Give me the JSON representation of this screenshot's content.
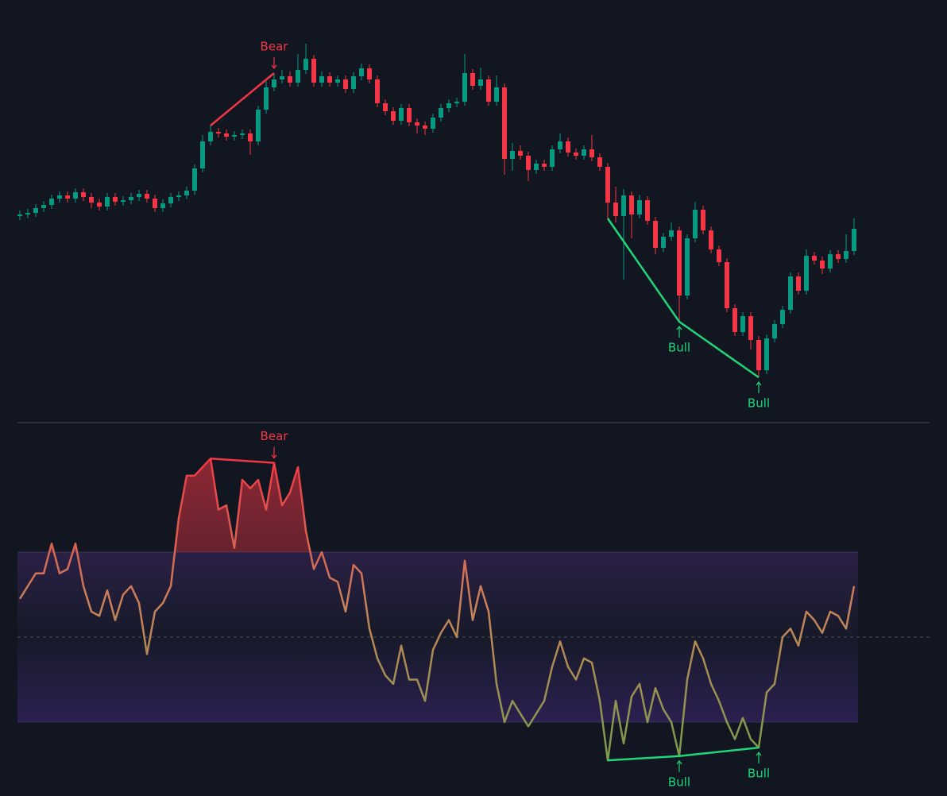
{
  "chart_data": [
    {
      "type": "candlestick",
      "ylim": [
        0,
        480
      ],
      "up_color": "#089981",
      "down_color": "#f23645",
      "open": [
        248,
        250,
        252,
        258,
        262,
        270,
        274,
        270,
        278,
        272,
        265,
        260,
        272,
        266,
        268,
        272,
        276,
        270,
        258,
        264,
        272,
        274,
        280,
        308,
        342,
        354,
        352,
        348,
        350,
        352,
        342,
        382,
        410,
        420,
        424,
        416,
        432,
        446,
        416,
        424,
        416,
        420,
        408,
        424,
        434,
        420,
        390,
        380,
        368,
        384,
        366,
        362,
        358,
        372,
        384,
        390,
        392,
        428,
        412,
        420,
        392,
        410,
        320,
        330,
        324,
        306,
        314,
        310,
        332,
        342,
        328,
        324,
        332,
        322,
        310,
        265,
        248,
        274,
        250,
        268,
        242,
        208,
        222,
        230,
        148,
        220,
        256,
        230,
        206,
        190,
        132,
        102,
        122,
        92,
        54,
        94,
        112,
        130,
        172,
        154,
        198,
        192,
        182,
        200,
        194,
        204
      ],
      "high": [
        255,
        257,
        263,
        267,
        275,
        279,
        279,
        283,
        283,
        277,
        270,
        277,
        277,
        273,
        277,
        281,
        281,
        275,
        269,
        277,
        279,
        285,
        313,
        350,
        362,
        359,
        357,
        355,
        357,
        357,
        387,
        418,
        428,
        432,
        430,
        452,
        465,
        451,
        430,
        429,
        425,
        425,
        429,
        440,
        439,
        425,
        395,
        385,
        389,
        389,
        371,
        367,
        377,
        389,
        395,
        397,
        452,
        433,
        435,
        425,
        425,
        415,
        340,
        337,
        329,
        319,
        319,
        337,
        352,
        347,
        333,
        337,
        350,
        327,
        315,
        285,
        282,
        279,
        275,
        273,
        247,
        227,
        240,
        235,
        225,
        266,
        261,
        235,
        211,
        195,
        137,
        127,
        127,
        97,
        99,
        117,
        135,
        177,
        177,
        206,
        203,
        197,
        205,
        205,
        225,
        245
      ],
      "low": [
        243,
        245,
        247,
        253,
        257,
        265,
        265,
        265,
        267,
        258,
        255,
        255,
        261,
        261,
        263,
        267,
        265,
        253,
        253,
        259,
        267,
        269,
        275,
        303,
        337,
        347,
        343,
        343,
        345,
        325,
        337,
        377,
        405,
        415,
        411,
        411,
        427,
        411,
        411,
        411,
        411,
        403,
        403,
        419,
        415,
        385,
        375,
        363,
        363,
        361,
        352,
        350,
        353,
        367,
        379,
        385,
        387,
        407,
        407,
        387,
        387,
        300,
        305,
        319,
        292,
        301,
        305,
        305,
        327,
        323,
        319,
        319,
        317,
        305,
        245,
        240,
        168,
        220,
        245,
        237,
        200,
        203,
        217,
        115,
        143,
        215,
        225,
        201,
        185,
        127,
        97,
        97,
        80,
        45,
        49,
        89,
        107,
        125,
        149,
        149,
        187,
        175,
        177,
        189,
        189,
        199
      ],
      "close": [
        250,
        252,
        258,
        262,
        270,
        274,
        270,
        278,
        272,
        265,
        260,
        272,
        266,
        268,
        272,
        276,
        270,
        258,
        264,
        272,
        274,
        280,
        308,
        342,
        354,
        352,
        348,
        350,
        352,
        342,
        382,
        410,
        420,
        424,
        416,
        432,
        446,
        416,
        424,
        416,
        420,
        408,
        424,
        434,
        420,
        390,
        380,
        368,
        384,
        366,
        362,
        358,
        372,
        384,
        390,
        392,
        428,
        412,
        420,
        392,
        410,
        320,
        330,
        324,
        306,
        314,
        310,
        332,
        342,
        328,
        324,
        332,
        322,
        310,
        265,
        248,
        274,
        250,
        268,
        242,
        208,
        222,
        230,
        148,
        220,
        256,
        230,
        206,
        190,
        132,
        102,
        122,
        92,
        54,
        94,
        112,
        130,
        172,
        154,
        198,
        192,
        182,
        200,
        194,
        204,
        232
      ],
      "divergences": [
        {
          "kind": "bear",
          "color": "#f23645",
          "indices": [
            24,
            32
          ],
          "label_at": [
            32
          ],
          "labels": [
            "Bear"
          ]
        },
        {
          "kind": "bull",
          "color": "#1fd67a",
          "indices": [
            74,
            83,
            93
          ],
          "label_at": [
            83,
            93
          ],
          "labels": [
            "Bull",
            "Bull"
          ]
        }
      ]
    },
    {
      "type": "line",
      "ylim": [
        14,
        100
      ],
      "bands": [
        30,
        70
      ],
      "midline": 50,
      "colors": [
        "#f23645",
        "#c9825a",
        "#7c9a4c"
      ],
      "values": [
        59,
        62,
        65,
        65,
        72,
        65,
        66,
        72,
        62,
        56,
        55,
        61,
        54,
        60,
        62,
        58,
        46,
        56,
        58,
        62,
        78,
        88,
        88,
        90,
        92,
        80,
        81,
        71,
        87,
        85,
        87,
        80,
        91,
        81,
        84,
        90,
        75,
        66,
        70,
        64,
        63,
        56,
        67,
        65,
        52,
        45,
        41,
        39,
        48,
        40,
        40,
        35,
        47,
        51,
        54,
        50,
        68,
        54,
        62,
        56,
        39,
        30,
        35,
        32,
        29,
        32,
        35,
        43,
        49,
        43,
        40,
        45,
        44,
        35,
        21,
        35,
        25,
        36,
        39,
        30,
        38,
        33,
        30,
        22,
        40,
        49,
        45,
        39,
        35,
        30,
        26,
        31,
        26,
        24,
        37,
        39,
        50,
        52,
        48,
        56,
        54,
        51,
        56,
        55,
        52,
        62
      ],
      "divergences": [
        {
          "kind": "bear",
          "color": "#f23645",
          "indices": [
            24,
            32
          ],
          "label_at": [
            32
          ],
          "labels": [
            "Bear"
          ]
        },
        {
          "kind": "bull",
          "color": "#1fd67a",
          "indices": [
            74,
            83,
            93
          ],
          "label_at": [
            83,
            93
          ],
          "labels": [
            "Bull",
            "Bull"
          ]
        }
      ]
    }
  ]
}
